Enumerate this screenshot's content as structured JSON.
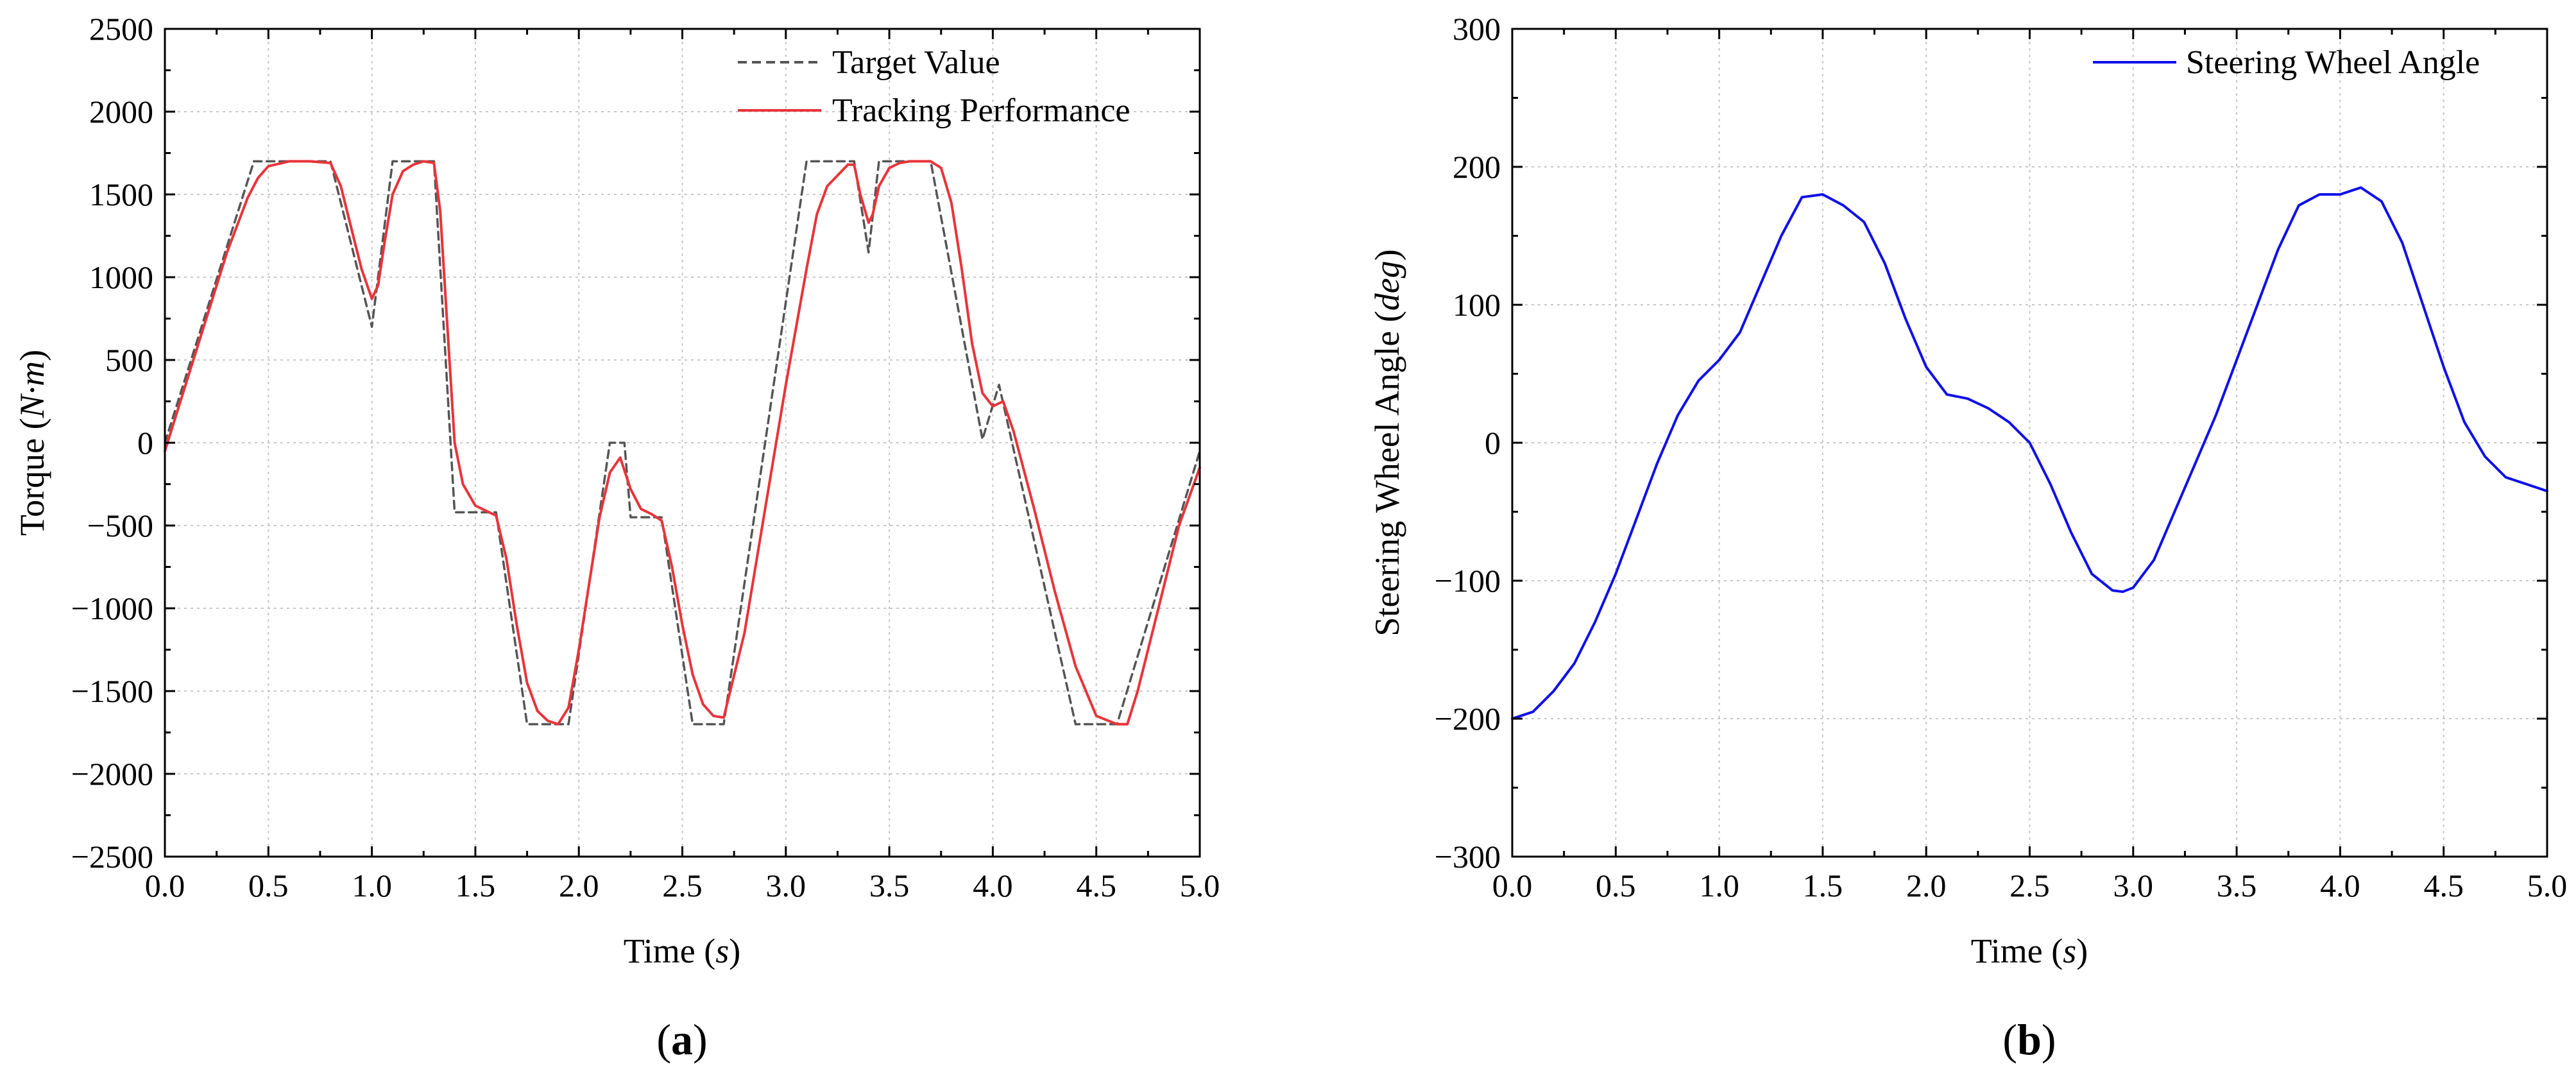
{
  "chart_data": [
    {
      "type": "line",
      "panel_label": "a",
      "title": "",
      "xlabel": "Time",
      "xlabel_unit": "s",
      "ylabel": "Torque",
      "ylabel_unit": "N·m",
      "xlim": [
        0,
        5
      ],
      "ylim": [
        -2500,
        2500
      ],
      "xticks": [
        "0.0",
        "0.5",
        "1.0",
        "1.5",
        "2.0",
        "2.5",
        "3.0",
        "3.5",
        "4.0",
        "4.5",
        "5.0"
      ],
      "yticks": [
        "2500",
        "2000",
        "1500",
        "1000",
        "500",
        "0",
        "−500",
        "−1000",
        "−1500",
        "−2000",
        "−2500"
      ],
      "grid": true,
      "legend_position": "top-right",
      "series": [
        {
          "name": "Target Value",
          "color": "#555555",
          "style": "dashed",
          "x": [
            0,
            0.43,
            0.8,
            1.0,
            1.1,
            1.3,
            1.4,
            1.6,
            1.75,
            1.95,
            2.15,
            2.22,
            2.25,
            2.4,
            2.55,
            2.7,
            3.1,
            3.33,
            3.4,
            3.45,
            3.7,
            3.95,
            4.03,
            4.4,
            4.6,
            5.0
          ],
          "values": [
            0,
            1700,
            1700,
            700,
            1700,
            1700,
            -420,
            -420,
            -1700,
            -1700,
            0,
            0,
            -450,
            -450,
            -1700,
            -1700,
            1700,
            1700,
            1150,
            1700,
            1700,
            20,
            350,
            -1700,
            -1700,
            -50
          ]
        },
        {
          "name": "Tracking Performance",
          "color": "#e8343a",
          "style": "solid",
          "x": [
            0,
            0.1,
            0.2,
            0.3,
            0.4,
            0.45,
            0.5,
            0.6,
            0.7,
            0.8,
            0.85,
            0.9,
            0.95,
            1.0,
            1.03,
            1.06,
            1.1,
            1.15,
            1.2,
            1.25,
            1.3,
            1.33,
            1.36,
            1.4,
            1.44,
            1.5,
            1.55,
            1.6,
            1.65,
            1.7,
            1.75,
            1.8,
            1.85,
            1.9,
            1.95,
            2.0,
            2.05,
            2.1,
            2.15,
            2.2,
            2.25,
            2.3,
            2.35,
            2.4,
            2.45,
            2.5,
            2.55,
            2.6,
            2.65,
            2.7,
            2.8,
            2.9,
            3.0,
            3.1,
            3.15,
            3.2,
            3.3,
            3.33,
            3.36,
            3.4,
            3.42,
            3.45,
            3.5,
            3.55,
            3.6,
            3.7,
            3.75,
            3.8,
            3.85,
            3.9,
            3.95,
            4.0,
            4.05,
            4.1,
            4.2,
            4.3,
            4.4,
            4.5,
            4.6,
            4.65,
            4.7,
            4.8,
            4.9,
            5.0
          ],
          "values": [
            -50,
            350,
            750,
            1150,
            1480,
            1600,
            1670,
            1700,
            1700,
            1690,
            1550,
            1300,
            1050,
            870,
            950,
            1200,
            1500,
            1640,
            1680,
            1700,
            1690,
            1400,
            800,
            0,
            -250,
            -380,
            -410,
            -440,
            -700,
            -1100,
            -1450,
            -1620,
            -1680,
            -1700,
            -1600,
            -1250,
            -850,
            -450,
            -180,
            -90,
            -280,
            -400,
            -430,
            -470,
            -750,
            -1100,
            -1400,
            -1580,
            -1650,
            -1660,
            -1150,
            -400,
            350,
            1050,
            1380,
            1550,
            1680,
            1680,
            1500,
            1330,
            1380,
            1550,
            1660,
            1690,
            1700,
            1700,
            1660,
            1450,
            1050,
            600,
            300,
            220,
            250,
            70,
            -400,
            -900,
            -1350,
            -1650,
            -1700,
            -1700,
            -1500,
            -1000,
            -500,
            -150
          ]
        }
      ]
    },
    {
      "type": "line",
      "panel_label": "b",
      "title": "",
      "xlabel": "Time",
      "xlabel_unit": "s",
      "ylabel": "Steering Wheel Angle",
      "ylabel_unit": "deg",
      "xlim": [
        0,
        5
      ],
      "ylim": [
        -300,
        300
      ],
      "xticks": [
        "0.0",
        "0.5",
        "1.0",
        "1.5",
        "2.0",
        "2.5",
        "3.0",
        "3.5",
        "4.0",
        "4.5",
        "5.0"
      ],
      "yticks": [
        "300",
        "200",
        "100",
        "0",
        "−100",
        "−200",
        "−300"
      ],
      "grid": true,
      "legend_position": "top-right",
      "series": [
        {
          "name": "Steering Wheel Angle",
          "color": "#1010e8",
          "style": "solid",
          "x": [
            0,
            0.1,
            0.2,
            0.3,
            0.4,
            0.5,
            0.6,
            0.7,
            0.8,
            0.9,
            1.0,
            1.1,
            1.2,
            1.3,
            1.4,
            1.5,
            1.6,
            1.7,
            1.8,
            1.9,
            2.0,
            2.1,
            2.2,
            2.3,
            2.4,
            2.5,
            2.6,
            2.7,
            2.8,
            2.9,
            2.95,
            3.0,
            3.1,
            3.2,
            3.3,
            3.4,
            3.5,
            3.6,
            3.7,
            3.8,
            3.9,
            4.0,
            4.1,
            4.2,
            4.3,
            4.4,
            4.5,
            4.6,
            4.7,
            4.8,
            4.9,
            5.0
          ],
          "values": [
            -200,
            -195,
            -180,
            -160,
            -130,
            -95,
            -55,
            -15,
            20,
            45,
            60,
            80,
            115,
            150,
            178,
            180,
            172,
            160,
            130,
            90,
            55,
            35,
            32,
            25,
            15,
            0,
            -30,
            -65,
            -95,
            -107,
            -108,
            -105,
            -85,
            -50,
            -15,
            20,
            60,
            100,
            140,
            172,
            180,
            180,
            185,
            175,
            145,
            100,
            55,
            15,
            -10,
            -25,
            -30,
            -35
          ]
        }
      ]
    }
  ]
}
